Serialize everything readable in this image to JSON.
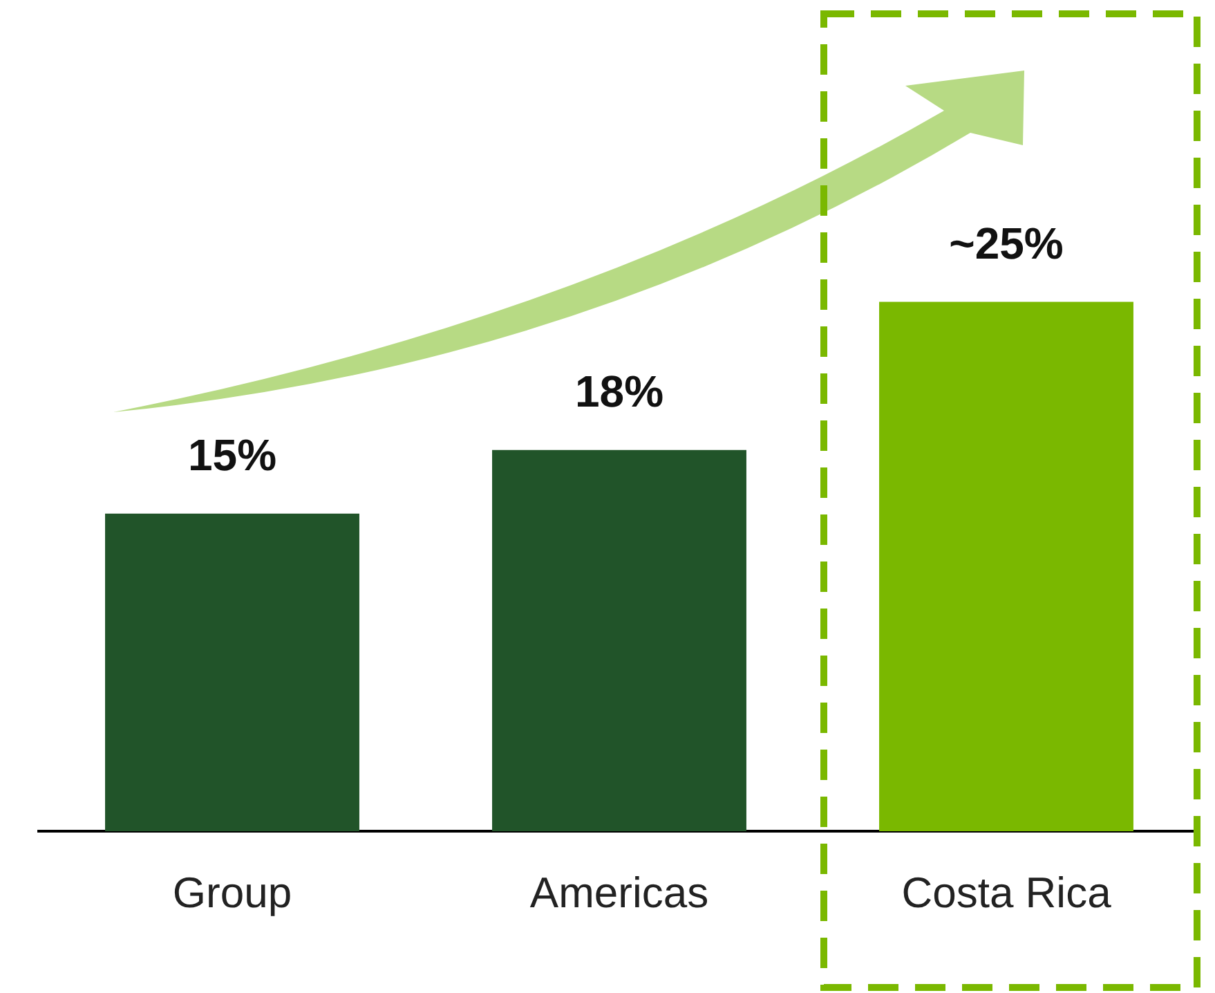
{
  "chart_data": {
    "type": "bar",
    "categories": [
      "Group",
      "Americas",
      "Costa Rica"
    ],
    "values": [
      15,
      18,
      25
    ],
    "colors": [
      "#215429",
      "#215429",
      "#7ab800"
    ],
    "value_labels": [
      "15%",
      "18%",
      "~25%"
    ],
    "grid": false,
    "legend": false,
    "tick_labels": "x"
  }
}
